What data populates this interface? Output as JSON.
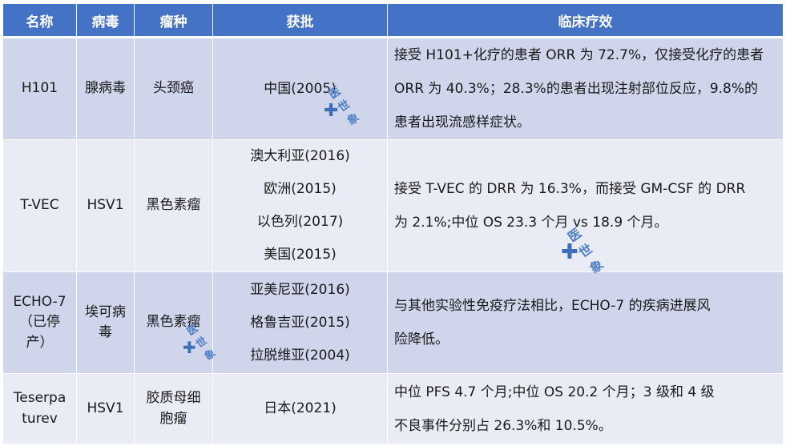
{
  "table": {
    "headers": {
      "name": "名称",
      "virus": "病毒",
      "cancer": "瘤种",
      "approval": "获批",
      "clinical": "临床疗效"
    },
    "rows": [
      {
        "name": [
          "H101"
        ],
        "virus": [
          "腺病毒"
        ],
        "cancer": [
          "头颈癌"
        ],
        "approval": [
          "中国(2005)"
        ],
        "clinical": [
          "接受 H101+化疗的患者 ORR 为 72.7%，仅接受化疗的患者",
          "ORR 为 40.3%；28.3%的患者出现注射部位反应，9.8%的",
          "患者出现流感样症状。"
        ]
      },
      {
        "name": [
          "T-VEC"
        ],
        "virus": [
          "HSV1"
        ],
        "cancer": [
          "黑色素瘤"
        ],
        "approval": [
          "澳大利亚(2016)",
          "欧洲(2015)",
          "以色列(2017)",
          "美国(2015)"
        ],
        "clinical": [
          "接受 T-VEC 的 DRR 为 16.3%，而接受 GM-CSF 的 DRR",
          "为 2.1%;中位 OS 23.3 个月 vs 18.9 个月。"
        ]
      },
      {
        "name": [
          "ECHO-7",
          "（已停",
          "产）"
        ],
        "virus": [
          "埃可病",
          "毒"
        ],
        "cancer": [
          "黑色素瘤"
        ],
        "approval": [
          "亚美尼亚(2016)",
          "格鲁吉亚(2015)",
          "拉脱维亚(2004)"
        ],
        "clinical": [
          "与其他实验性免疫疗法相比，ECHO-7 的疾病进展风",
          "险降低。"
        ]
      },
      {
        "name": [
          "Teserpa",
          "turev"
        ],
        "virus": [
          "HSV1"
        ],
        "cancer": [
          "胶质母细",
          "胞瘤"
        ],
        "approval": [
          "日本(2021)"
        ],
        "clinical": [
          "中位 PFS 4.7 个月;中位 OS 20.2 个月；3 级和 4 级",
          "不良事件分别占 26.3%和 10.5%。"
        ]
      }
    ]
  },
  "watermark": {
    "logo_text": "医世象",
    "cross": "✚"
  },
  "colors": {
    "header_bg": "#4472c4",
    "row_dark": "#cfd5ea",
    "row_light": "#e9ebf5"
  }
}
